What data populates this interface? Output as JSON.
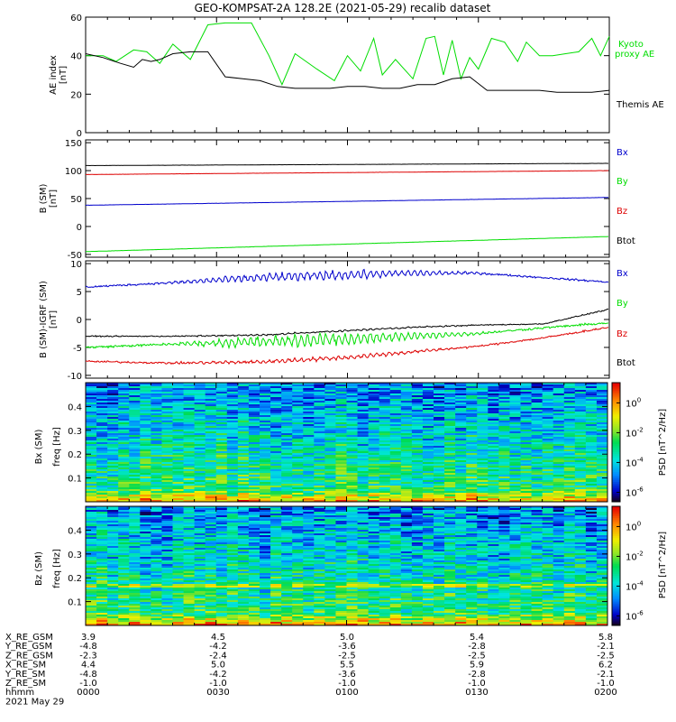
{
  "title": "GEO-KOMPSAT-2A 128.2E (2021-05-29) recalib dataset",
  "colors": {
    "black": "#000000",
    "green": "#00dd00",
    "red": "#dd0000",
    "blue": "#0000cc"
  },
  "chart_data": [
    {
      "type": "line",
      "panel": "ae",
      "ylabel": "AE index",
      "yunit": "[nT]",
      "ylim": [
        0,
        60
      ],
      "yticks": [
        0,
        20,
        40,
        60
      ],
      "xlim": [
        0,
        120
      ],
      "series": [
        {
          "name": "Kyoto proxy AE",
          "color": "green",
          "x": [
            0,
            4,
            7,
            11,
            14,
            17,
            20,
            24,
            28,
            32,
            34,
            38,
            42,
            45,
            48,
            53,
            57,
            60,
            63,
            66,
            68,
            71,
            75,
            78,
            80,
            82,
            84,
            86,
            88,
            90,
            93,
            96,
            99,
            101,
            104,
            107,
            110,
            113,
            116,
            118,
            120
          ],
          "y": [
            40,
            40,
            37,
            43,
            42,
            36,
            46,
            38,
            56,
            57,
            57,
            57,
            40,
            25,
            41,
            33,
            27,
            40,
            32,
            49,
            30,
            38,
            28,
            49,
            50,
            30,
            48,
            28,
            39,
            33,
            49,
            47,
            37,
            47,
            40,
            40,
            41,
            42,
            49,
            40,
            50
          ]
        },
        {
          "name": "Themis AE",
          "color": "black",
          "x": [
            0,
            4,
            8,
            11,
            13,
            15,
            17,
            20,
            24,
            26,
            28,
            32,
            36,
            40,
            44,
            48,
            52,
            56,
            60,
            64,
            68,
            72,
            76,
            80,
            84,
            88,
            92,
            96,
            100,
            104,
            108,
            112,
            116,
            120
          ],
          "y": [
            41,
            39,
            36,
            34,
            38,
            37,
            38,
            41,
            42,
            42,
            42,
            29,
            28,
            27,
            24,
            23,
            23,
            23,
            24,
            24,
            23,
            23,
            25,
            25,
            28,
            29,
            22,
            22,
            22,
            22,
            21,
            21,
            21,
            22
          ]
        }
      ]
    },
    {
      "type": "line",
      "panel": "b_sm",
      "ylabel": "B (SM)",
      "yunit": "[nT]",
      "ylim": [
        -55,
        155
      ],
      "yticks": [
        -50,
        0,
        50,
        100,
        150
      ],
      "xlim": [
        0,
        120
      ],
      "series": [
        {
          "name": "Bx",
          "color": "black",
          "x": [
            0,
            120
          ],
          "y": [
            109,
            113
          ]
        },
        {
          "name": "By",
          "color": "red",
          "x": [
            0,
            120
          ],
          "y": [
            93,
            100
          ]
        },
        {
          "name": "Bz",
          "color": "blue",
          "x": [
            0,
            120
          ],
          "y": [
            38,
            52
          ]
        },
        {
          "name": "Btot",
          "color": "green",
          "x": [
            0,
            120
          ],
          "y": [
            -45,
            -18
          ]
        }
      ]
    },
    {
      "type": "line",
      "panel": "b_minus_igrf",
      "ylabel": "B (SM)-IGRF (SM)",
      "yunit": "[nT]",
      "ylim": [
        -10.5,
        10.5
      ],
      "yticks": [
        -10,
        -5,
        0,
        5,
        10
      ],
      "xlim": [
        0,
        120
      ],
      "series": [
        {
          "name": "Bx",
          "color": "blue",
          "x": [
            0,
            20,
            40,
            60,
            75,
            90,
            105,
            120
          ],
          "y": [
            5.8,
            6.6,
            7.5,
            8.0,
            8.3,
            8.3,
            7.5,
            6.7
          ]
        },
        {
          "name": "By",
          "color": "green",
          "x": [
            0,
            20,
            40,
            60,
            75,
            90,
            105,
            120
          ],
          "y": [
            -5.0,
            -4.4,
            -4.0,
            -3.5,
            -3.0,
            -2.5,
            -1.5,
            -0.6
          ]
        },
        {
          "name": "Bz",
          "color": "red",
          "x": [
            0,
            20,
            40,
            60,
            75,
            90,
            105,
            120
          ],
          "y": [
            -7.5,
            -7.8,
            -7.6,
            -6.8,
            -5.8,
            -4.8,
            -3.3,
            -1.4
          ]
        },
        {
          "name": "Btot",
          "color": "black",
          "x": [
            0,
            20,
            40,
            60,
            75,
            90,
            105,
            120
          ],
          "y": [
            -3.0,
            -3.0,
            -2.8,
            -2.0,
            -1.4,
            -1.0,
            -0.8,
            1.8
          ]
        }
      ]
    },
    {
      "type": "heatmap",
      "panel": "bx_spec",
      "ylabel": "Bx (SM)",
      "yunit": "freq [Hz]",
      "ylim": [
        0,
        0.5
      ],
      "yticks": [
        0.1,
        0.2,
        0.3,
        0.4
      ],
      "colorbar_label": "PSD [nT^2/Hz]",
      "colorbar_ticks": [
        "10^0",
        "10^-2",
        "10^-4",
        "10^-6"
      ]
    },
    {
      "type": "heatmap",
      "panel": "bz_spec",
      "ylabel": "Bz (SM)",
      "yunit": "freq [Hz]",
      "ylim": [
        0,
        0.5
      ],
      "yticks": [
        0.1,
        0.2,
        0.3,
        0.4
      ],
      "colorbar_label": "PSD [nT^2/Hz]",
      "colorbar_ticks": [
        "10^0",
        "10^-2",
        "10^-4",
        "10^-6"
      ]
    }
  ],
  "legend": {
    "ae": [
      "Kyoto",
      "proxy AE",
      "Themis AE"
    ],
    "b": [
      "Bx",
      "By",
      "Bz",
      "Btot"
    ]
  },
  "ephemeris": {
    "labels": [
      "X_RE_GSM",
      "Y_RE_GSM",
      "Z_RE_GSM",
      "X_RE_SM",
      "Y_RE_SM",
      "Z_RE_SM",
      "hhmm",
      "2021 May 29"
    ],
    "columns": [
      [
        "3.9",
        "-4.8",
        "-2.3",
        "4.4",
        "-4.8",
        "-1.0",
        "0000"
      ],
      [
        "4.5",
        "-4.2",
        "-2.4",
        "5.0",
        "-4.2",
        "-1.0",
        "0030"
      ],
      [
        "5.0",
        "-3.6",
        "-2.5",
        "5.5",
        "-3.6",
        "-1.0",
        "0100"
      ],
      [
        "5.4",
        "-2.8",
        "-2.5",
        "5.9",
        "-2.8",
        "-1.0",
        "0130"
      ],
      [
        "5.8",
        "-2.1",
        "-2.5",
        "6.2",
        "-2.1",
        "-1.0",
        "0200"
      ]
    ]
  }
}
